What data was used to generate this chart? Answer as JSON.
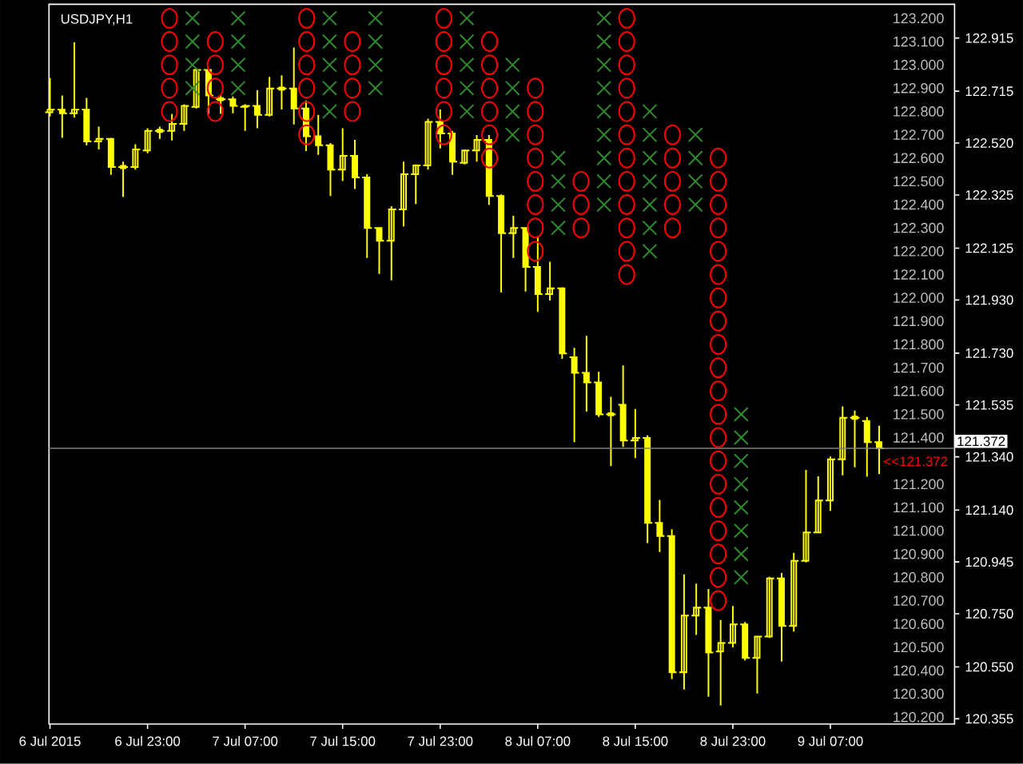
{
  "chart_data": {
    "type": "candlestick",
    "title": "USDJPY,H1",
    "color": "#ffff00",
    "x": [
      "2015-07-06T15:00",
      "2015-07-06T16:00",
      "2015-07-06T17:00",
      "2015-07-06T18:00",
      "2015-07-06T19:00",
      "2015-07-06T20:00",
      "2015-07-06T21:00",
      "2015-07-06T22:00",
      "2015-07-06T23:00",
      "2015-07-07T00:00",
      "2015-07-07T01:00",
      "2015-07-07T02:00",
      "2015-07-07T03:00",
      "2015-07-07T04:00",
      "2015-07-07T05:00",
      "2015-07-07T06:00",
      "2015-07-07T07:00",
      "2015-07-07T08:00",
      "2015-07-07T09:00",
      "2015-07-07T10:00",
      "2015-07-07T11:00",
      "2015-07-07T12:00",
      "2015-07-07T13:00",
      "2015-07-07T14:00",
      "2015-07-07T15:00",
      "2015-07-07T16:00",
      "2015-07-07T17:00",
      "2015-07-07T18:00",
      "2015-07-07T19:00",
      "2015-07-07T20:00",
      "2015-07-07T21:00",
      "2015-07-07T22:00",
      "2015-07-07T23:00",
      "2015-07-08T00:00",
      "2015-07-08T01:00",
      "2015-07-08T02:00",
      "2015-07-08T03:00",
      "2015-07-08T04:00",
      "2015-07-08T05:00",
      "2015-07-08T06:00",
      "2015-07-08T07:00",
      "2015-07-08T08:00",
      "2015-07-08T09:00",
      "2015-07-08T10:00",
      "2015-07-08T11:00",
      "2015-07-08T12:00",
      "2015-07-08T13:00",
      "2015-07-08T14:00",
      "2015-07-08T15:00",
      "2015-07-08T16:00",
      "2015-07-08T17:00",
      "2015-07-08T18:00",
      "2015-07-08T19:00",
      "2015-07-08T20:00",
      "2015-07-08T21:00",
      "2015-07-08T22:00",
      "2015-07-08T23:00",
      "2015-07-09T00:00",
      "2015-07-09T01:00",
      "2015-07-09T02:00",
      "2015-07-09T03:00",
      "2015-07-09T04:00",
      "2015-07-09T05:00",
      "2015-07-09T06:00",
      "2015-07-09T07:00",
      "2015-07-09T08:00",
      "2015-07-09T09:00",
      "2015-07-09T10:00",
      "2015-07-09T11:00"
    ],
    "ohlc": [
      [
        122.636,
        122.765,
        122.62,
        122.646
      ],
      [
        122.646,
        122.699,
        122.54,
        122.632
      ],
      [
        122.632,
        122.899,
        122.616,
        122.646
      ],
      [
        122.646,
        122.69,
        122.512,
        122.526
      ],
      [
        122.526,
        122.582,
        122.496,
        122.536
      ],
      [
        122.536,
        122.54,
        122.401,
        122.43
      ],
      [
        122.43,
        122.45,
        122.317,
        122.43
      ],
      [
        122.43,
        122.516,
        122.42,
        122.496
      ],
      [
        122.492,
        122.576,
        122.482,
        122.566
      ],
      [
        122.566,
        122.582,
        122.536,
        122.566
      ],
      [
        122.566,
        122.63,
        122.53,
        122.592
      ],
      [
        122.592,
        122.666,
        122.566,
        122.66
      ],
      [
        122.656,
        122.801,
        122.65,
        122.795
      ],
      [
        122.795,
        122.795,
        122.63,
        122.699
      ],
      [
        122.685,
        122.699,
        122.63,
        122.685
      ],
      [
        122.685,
        122.695,
        122.632,
        122.66
      ],
      [
        122.656,
        122.666,
        122.566,
        122.66
      ],
      [
        122.66,
        122.719,
        122.576,
        122.626
      ],
      [
        122.626,
        122.769,
        122.62,
        122.725
      ],
      [
        122.725,
        122.775,
        122.646,
        122.725
      ],
      [
        122.725,
        122.879,
        122.59,
        122.65
      ],
      [
        122.65,
        122.68,
        122.49,
        122.546
      ],
      [
        122.546,
        122.626,
        122.476,
        122.512
      ],
      [
        122.512,
        122.52,
        122.321,
        122.42
      ],
      [
        122.42,
        122.576,
        122.377,
        122.472
      ],
      [
        122.472,
        122.532,
        122.347,
        122.391
      ],
      [
        122.391,
        122.403,
        122.088,
        122.201
      ],
      [
        122.201,
        122.203,
        122.028,
        122.153
      ],
      [
        122.153,
        122.283,
        122.004,
        122.271
      ],
      [
        122.271,
        122.45,
        122.207,
        122.403
      ],
      [
        122.403,
        122.44,
        122.291,
        122.436
      ],
      [
        122.436,
        122.612,
        122.42,
        122.6
      ],
      [
        122.6,
        122.646,
        122.5,
        122.556
      ],
      [
        122.556,
        122.566,
        122.401,
        122.45
      ],
      [
        122.446,
        122.496,
        122.44,
        122.492
      ],
      [
        122.492,
        122.55,
        122.45,
        122.532
      ],
      [
        122.532,
        122.55,
        122.287,
        122.321
      ],
      [
        122.321,
        122.327,
        121.958,
        122.181
      ],
      [
        122.181,
        122.247,
        122.088,
        122.201
      ],
      [
        122.201,
        122.201,
        121.962,
        122.054
      ],
      [
        122.054,
        122.167,
        121.885,
        121.952
      ],
      [
        121.952,
        122.074,
        121.928,
        121.974
      ],
      [
        121.974,
        121.978,
        121.709,
        121.729
      ],
      [
        121.715,
        121.75,
        121.395,
        121.656
      ],
      [
        121.656,
        121.795,
        121.51,
        121.62
      ],
      [
        121.62,
        121.66,
        121.49,
        121.5
      ],
      [
        121.5,
        121.566,
        121.305,
        121.5
      ],
      [
        121.536,
        121.684,
        121.377,
        121.401
      ],
      [
        121.401,
        121.52,
        121.335,
        121.411
      ],
      [
        121.411,
        121.421,
        121.016,
        121.092
      ],
      [
        121.092,
        121.178,
        120.982,
        121.042
      ],
      [
        121.042,
        121.068,
        120.504,
        120.53
      ],
      [
        120.53,
        120.898,
        120.465,
        120.743
      ],
      [
        120.743,
        120.863,
        120.67,
        120.773
      ],
      [
        120.773,
        120.843,
        120.438,
        120.604
      ],
      [
        120.608,
        120.727,
        120.405,
        120.64
      ],
      [
        120.64,
        120.779,
        120.624,
        120.71
      ],
      [
        120.71,
        120.719,
        120.574,
        120.584
      ],
      [
        120.584,
        120.664,
        120.45,
        120.664
      ],
      [
        120.664,
        120.889,
        120.659,
        120.883
      ],
      [
        120.883,
        120.903,
        120.57,
        120.704
      ],
      [
        120.704,
        120.979,
        120.683,
        120.949
      ],
      [
        120.949,
        121.291,
        120.943,
        121.056
      ],
      [
        121.056,
        121.267,
        121.056,
        121.176
      ],
      [
        121.176,
        121.341,
        121.138,
        121.331
      ],
      [
        121.331,
        121.53,
        121.271,
        121.487
      ],
      [
        121.487,
        121.514,
        121.301,
        121.487
      ],
      [
        121.475,
        121.49,
        121.265,
        121.395
      ],
      [
        121.395,
        121.457,
        121.275,
        121.372
      ]
    ],
    "xlim": [
      "2015-07-06T14:55",
      "2015-07-09T17:11"
    ],
    "xticks": [
      {
        "value": "2015-07-06T15:00",
        "label": "6 Jul 2015"
      },
      {
        "value": "2015-07-06T23:00",
        "label": "6 Jul 23:00"
      },
      {
        "value": "2015-07-07T07:00",
        "label": "7 Jul 07:00"
      },
      {
        "value": "2015-07-07T15:00",
        "label": "7 Jul 15:00"
      },
      {
        "value": "2015-07-07T23:00",
        "label": "7 Jul 23:00"
      },
      {
        "value": "2015-07-08T07:00",
        "label": "8 Jul 07:00"
      },
      {
        "value": "2015-07-08T15:00",
        "label": "8 Jul 15:00"
      },
      {
        "value": "2015-07-08T23:00",
        "label": "8 Jul 23:00"
      },
      {
        "value": "2015-07-09T07:00",
        "label": "9 Jul 07:00"
      }
    ],
    "ylim": [
      120.335,
      123.042
    ],
    "yticks": [
      {
        "value": 120.355,
        "label": "120.355"
      },
      {
        "value": 120.55,
        "label": "120.550"
      },
      {
        "value": 120.75,
        "label": "120.750"
      },
      {
        "value": 120.945,
        "label": "120.945"
      },
      {
        "value": 121.14,
        "label": "121.140"
      },
      {
        "value": 121.34,
        "label": "121.340"
      },
      {
        "value": 121.535,
        "label": "121.535"
      },
      {
        "value": 121.73,
        "label": "121.730"
      },
      {
        "value": 121.93,
        "label": "121.930"
      },
      {
        "value": 122.125,
        "label": "122.125"
      },
      {
        "value": 122.325,
        "label": "122.325"
      },
      {
        "value": 122.52,
        "label": "122.520"
      },
      {
        "value": 122.715,
        "label": "122.715"
      },
      {
        "value": 122.915,
        "label": "122.915"
      }
    ],
    "y2lim": [
      120.17,
      123.26
    ],
    "y2ticks": [
      {
        "value": 120.2,
        "label": "120.200"
      },
      {
        "value": 120.3,
        "label": "120.300"
      },
      {
        "value": 120.4,
        "label": "120.400"
      },
      {
        "value": 120.5,
        "label": "120.500"
      },
      {
        "value": 120.6,
        "label": "120.600"
      },
      {
        "value": 120.7,
        "label": "120.700"
      },
      {
        "value": 120.8,
        "label": "120.800"
      },
      {
        "value": 120.9,
        "label": "120.900"
      },
      {
        "value": 121.0,
        "label": "121.000"
      },
      {
        "value": 121.1,
        "label": "121.100"
      },
      {
        "value": 121.2,
        "label": "121.200"
      },
      {
        "value": 121.4,
        "label": "121.400"
      },
      {
        "value": 121.5,
        "label": "121.500"
      },
      {
        "value": 121.6,
        "label": "121.600"
      },
      {
        "value": 121.7,
        "label": "121.700"
      },
      {
        "value": 121.8,
        "label": "121.800"
      },
      {
        "value": 121.9,
        "label": "121.900"
      },
      {
        "value": 122.0,
        "label": "122.000"
      },
      {
        "value": 122.1,
        "label": "122.100"
      },
      {
        "value": 122.2,
        "label": "122.200"
      },
      {
        "value": 122.3,
        "label": "122.300"
      },
      {
        "value": 122.4,
        "label": "122.400"
      },
      {
        "value": 122.5,
        "label": "122.500"
      },
      {
        "value": 122.6,
        "label": "122.600"
      },
      {
        "value": 122.7,
        "label": "122.700"
      },
      {
        "value": 122.8,
        "label": "122.800"
      },
      {
        "value": 122.9,
        "label": "122.900"
      },
      {
        "value": 123.0,
        "label": "123.000"
      },
      {
        "value": 123.1,
        "label": "123.100"
      },
      {
        "value": 123.2,
        "label": "123.200"
      }
    ],
    "series": [
      {
        "type": "scatter",
        "axis": "y2",
        "marker": "cross",
        "color": "#2e8b2e",
        "x": [
          "2015-07-07T02:41",
          "2015-07-07T02:41",
          "2015-07-07T02:41",
          "2015-07-07T02:41",
          "2015-07-07T06:26",
          "2015-07-07T06:26",
          "2015-07-07T06:26",
          "2015-07-07T06:26",
          "2015-07-07T13:56",
          "2015-07-07T13:56",
          "2015-07-07T13:56",
          "2015-07-07T13:56",
          "2015-07-07T13:56",
          "2015-07-07T17:41",
          "2015-07-07T17:41",
          "2015-07-07T17:41",
          "2015-07-07T17:41",
          "2015-07-08T01:11",
          "2015-07-08T01:11",
          "2015-07-08T01:11",
          "2015-07-08T01:11",
          "2015-07-08T01:11",
          "2015-07-08T04:56",
          "2015-07-08T04:56",
          "2015-07-08T04:56",
          "2015-07-08T04:56",
          "2015-07-08T08:41",
          "2015-07-08T08:41",
          "2015-07-08T08:41",
          "2015-07-08T08:41",
          "2015-07-08T12:26",
          "2015-07-08T12:26",
          "2015-07-08T12:26",
          "2015-07-08T12:26",
          "2015-07-08T12:26",
          "2015-07-08T12:26",
          "2015-07-08T12:26",
          "2015-07-08T12:26",
          "2015-07-08T12:26",
          "2015-07-08T16:11",
          "2015-07-08T16:11",
          "2015-07-08T16:11",
          "2015-07-08T16:11",
          "2015-07-08T16:11",
          "2015-07-08T16:11",
          "2015-07-08T16:11",
          "2015-07-08T19:56",
          "2015-07-08T19:56",
          "2015-07-08T19:56",
          "2015-07-08T19:56",
          "2015-07-08T23:41",
          "2015-07-08T23:41",
          "2015-07-08T23:41",
          "2015-07-08T23:41",
          "2015-07-08T23:41",
          "2015-07-08T23:41",
          "2015-07-08T23:41",
          "2015-07-08T23:41"
        ],
        "values": [
          123.2,
          123.1,
          123.0,
          122.9,
          123.2,
          123.1,
          123.0,
          122.9,
          123.2,
          123.1,
          123.0,
          122.9,
          122.8,
          123.2,
          123.1,
          123.0,
          122.9,
          123.2,
          123.1,
          123.0,
          122.9,
          122.8,
          123.0,
          122.9,
          122.8,
          122.7,
          122.6,
          122.5,
          122.4,
          122.3,
          123.2,
          123.1,
          123.0,
          122.9,
          122.8,
          122.7,
          122.6,
          122.5,
          122.4,
          122.8,
          122.7,
          122.6,
          122.5,
          122.4,
          122.3,
          122.2,
          122.7,
          122.6,
          122.5,
          122.4,
          121.5,
          121.4,
          121.3,
          121.2,
          121.1,
          121.0,
          120.9,
          120.8
        ]
      },
      {
        "type": "scatter",
        "axis": "y2",
        "marker": "circle",
        "color": "#ff0000",
        "x": [
          "2015-07-07T00:48",
          "2015-07-07T00:48",
          "2015-07-07T00:48",
          "2015-07-07T00:48",
          "2015-07-07T00:48",
          "2015-07-07T04:33",
          "2015-07-07T04:33",
          "2015-07-07T04:33",
          "2015-07-07T04:33",
          "2015-07-07T12:03",
          "2015-07-07T12:03",
          "2015-07-07T12:03",
          "2015-07-07T12:03",
          "2015-07-07T12:03",
          "2015-07-07T12:03",
          "2015-07-07T15:48",
          "2015-07-07T15:48",
          "2015-07-07T15:48",
          "2015-07-07T15:48",
          "2015-07-07T23:18",
          "2015-07-07T23:18",
          "2015-07-07T23:18",
          "2015-07-07T23:18",
          "2015-07-07T23:18",
          "2015-07-07T23:18",
          "2015-07-08T03:03",
          "2015-07-08T03:03",
          "2015-07-08T03:03",
          "2015-07-08T03:03",
          "2015-07-08T03:03",
          "2015-07-08T03:03",
          "2015-07-08T06:48",
          "2015-07-08T06:48",
          "2015-07-08T06:48",
          "2015-07-08T06:48",
          "2015-07-08T06:48",
          "2015-07-08T06:48",
          "2015-07-08T06:48",
          "2015-07-08T06:48",
          "2015-07-08T10:33",
          "2015-07-08T10:33",
          "2015-07-08T10:33",
          "2015-07-08T14:18",
          "2015-07-08T14:18",
          "2015-07-08T14:18",
          "2015-07-08T14:18",
          "2015-07-08T14:18",
          "2015-07-08T14:18",
          "2015-07-08T14:18",
          "2015-07-08T14:18",
          "2015-07-08T14:18",
          "2015-07-08T14:18",
          "2015-07-08T14:18",
          "2015-07-08T14:18",
          "2015-07-08T18:03",
          "2015-07-08T18:03",
          "2015-07-08T18:03",
          "2015-07-08T18:03",
          "2015-07-08T18:03",
          "2015-07-08T21:48",
          "2015-07-08T21:48",
          "2015-07-08T21:48",
          "2015-07-08T21:48",
          "2015-07-08T21:48",
          "2015-07-08T21:48",
          "2015-07-08T21:48",
          "2015-07-08T21:48",
          "2015-07-08T21:48",
          "2015-07-08T21:48",
          "2015-07-08T21:48",
          "2015-07-08T21:48",
          "2015-07-08T21:48",
          "2015-07-08T21:48",
          "2015-07-08T21:48",
          "2015-07-08T21:48",
          "2015-07-08T21:48",
          "2015-07-08T21:48",
          "2015-07-08T21:48",
          "2015-07-08T21:48"
        ],
        "values": [
          123.2,
          123.1,
          123.0,
          122.9,
          122.8,
          123.1,
          123.0,
          122.9,
          122.8,
          123.2,
          123.1,
          123.0,
          122.9,
          122.8,
          122.7,
          123.1,
          123.0,
          122.9,
          122.8,
          123.2,
          123.1,
          123.0,
          122.9,
          122.8,
          122.7,
          123.1,
          123.0,
          122.9,
          122.8,
          122.7,
          122.6,
          122.9,
          122.8,
          122.7,
          122.6,
          122.5,
          122.4,
          122.3,
          122.2,
          122.5,
          122.4,
          122.3,
          123.2,
          123.1,
          123.0,
          122.9,
          122.8,
          122.7,
          122.6,
          122.5,
          122.4,
          122.3,
          122.2,
          122.1,
          122.7,
          122.6,
          122.5,
          122.4,
          122.3,
          122.6,
          122.5,
          122.4,
          122.3,
          122.2,
          122.1,
          122.0,
          121.9,
          121.8,
          121.7,
          121.6,
          121.5,
          121.4,
          121.3,
          121.2,
          121.1,
          121.0,
          120.9,
          120.8,
          120.7
        ]
      }
    ],
    "ref_lines": [
      {
        "axis": "y",
        "value": 121.372,
        "label": "121.372",
        "color": "#808080"
      }
    ],
    "annotations": [
      "<<121.372"
    ]
  }
}
